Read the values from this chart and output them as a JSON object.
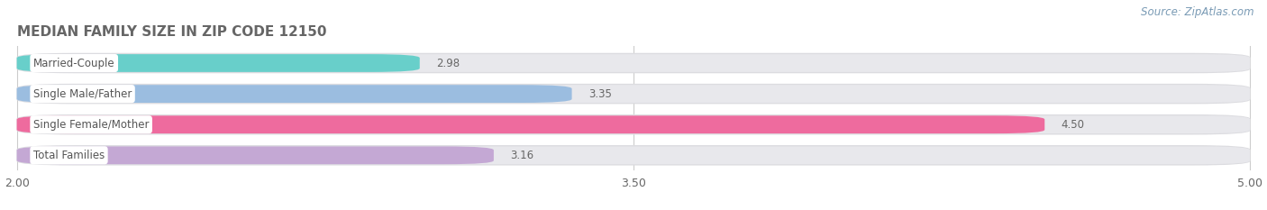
{
  "title": "MEDIAN FAMILY SIZE IN ZIP CODE 12150",
  "source": "Source: ZipAtlas.com",
  "categories": [
    "Married-Couple",
    "Single Male/Father",
    "Single Female/Mother",
    "Total Families"
  ],
  "values": [
    2.98,
    3.35,
    4.5,
    3.16
  ],
  "bar_colors": [
    "#68CFCA",
    "#9BBDE0",
    "#EE6B9E",
    "#C4A8D4"
  ],
  "xlim": [
    2.0,
    5.0
  ],
  "xticks": [
    2.0,
    3.5,
    5.0
  ],
  "xtick_labels": [
    "2.00",
    "3.50",
    "5.00"
  ],
  "grid_color": "#CCCCCC",
  "bg_color": "#FFFFFF",
  "bar_bg_color": "#E8E8EC",
  "bar_height": 0.58,
  "value_label_color": "#666666",
  "title_color": "#666666",
  "label_text_color": "#555555",
  "source_color": "#7A9BB5",
  "title_fontsize": 11,
  "label_fontsize": 8.5,
  "value_fontsize": 8.5,
  "tick_fontsize": 9,
  "bar_spacing": 1.0
}
